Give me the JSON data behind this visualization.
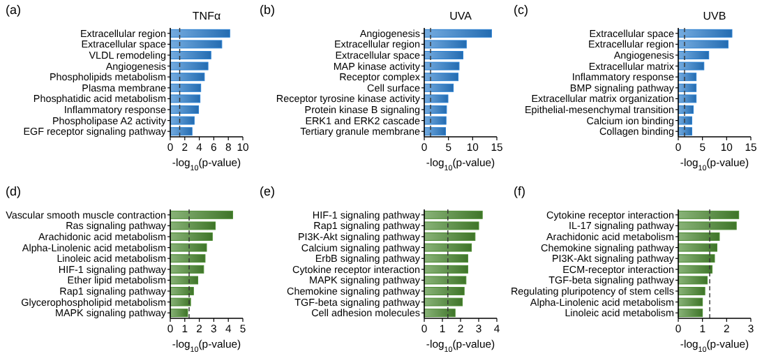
{
  "chart_data": [
    {
      "type": "bar",
      "orientation": "horizontal",
      "title": "TNFα",
      "annotations": [
        "(a)"
      ],
      "xlabel": "-log$_{10}$(p-value)",
      "categories": [
        "Extracellular region",
        "Extracellular space",
        "VLDL remodeling",
        "Angiogenesis",
        "Phospholipids metabolism",
        "Plasma membrane",
        "Phosphatidic acid metabolism",
        "Inflammatory response",
        "Phospholipase A2 activity",
        "EGF receptor signaling pathway"
      ],
      "xlim": [
        0,
        10
      ],
      "xticks": [
        0,
        2,
        4,
        6,
        8,
        10
      ],
      "ref_lines": [
        {
          "axis": "x",
          "value": 1.3,
          "line_style": "dashed",
          "color": "#333333"
        }
      ],
      "series": [
        {
          "color": "#2a7fd0",
          "values": [
            8.2,
            7.1,
            5.6,
            5.2,
            4.7,
            4.2,
            4.1,
            3.9,
            3.3,
            3.0
          ]
        }
      ]
    },
    {
      "type": "bar",
      "orientation": "horizontal",
      "title": "UVA",
      "annotations": [
        "(b)"
      ],
      "xlabel": "-log$_{10}$(p-value)",
      "categories": [
        "Angiogenesis",
        "Extracellular region",
        "Extracellular space",
        "MAP kinase activity",
        "Receptor complex",
        "Cell surface",
        "Receptor tyrosine kinase activity",
        "Protein kinase B signaling",
        "ERK1 and ERK2 cascade",
        "Tertiary granule membrane"
      ],
      "xlim": [
        0,
        15
      ],
      "xticks": [
        0,
        5,
        10,
        15
      ],
      "ref_lines": [
        {
          "axis": "x",
          "value": 1.3,
          "line_style": "dashed",
          "color": "#333333"
        }
      ],
      "series": [
        {
          "color": "#2a7fd0",
          "values": [
            13.9,
            8.7,
            8.0,
            7.2,
            7.0,
            6.0,
            4.9,
            4.6,
            4.5,
            4.4
          ]
        }
      ]
    },
    {
      "type": "bar",
      "orientation": "horizontal",
      "title": "UVB",
      "annotations": [
        "(c)"
      ],
      "xlabel": "-log$_{10}$(p-value)",
      "categories": [
        "Extracellular space",
        "Extracellular region",
        "Angiogenesis",
        "Extracellular matrix",
        "Inflammatory response",
        "BMP signaling pathway",
        "Extracellular matrix organization",
        "Epithelial-mesenchymal transition",
        "Calcium ion binding",
        "Collagen binding"
      ],
      "xlim": [
        0,
        15
      ],
      "xticks": [
        0,
        5,
        10,
        15
      ],
      "ref_lines": [
        {
          "axis": "x",
          "value": 1.3,
          "line_style": "dashed",
          "color": "#333333"
        }
      ],
      "series": [
        {
          "color": "#2a7fd0",
          "values": [
            11.1,
            10.3,
            6.3,
            5.3,
            3.7,
            3.7,
            3.7,
            3.1,
            2.8,
            2.8
          ]
        }
      ]
    },
    {
      "type": "bar",
      "orientation": "horizontal",
      "annotations": [
        "(d)"
      ],
      "xlabel": "-log$_{10}$(p-value)",
      "categories": [
        "Vascular smooth muscle contraction",
        "Ras signaling pathway",
        "Arachidonic acid metabolism",
        "Alpha-Linolenic acid metabolism",
        "Linoleic acid metabolism",
        "HIF-1 signaling pathway",
        "Ether lipid metabolism",
        "Rap1 signaling pathway",
        "Glycerophospholipid metabolism",
        "MAPK signaling pathway"
      ],
      "xlim": [
        0,
        5
      ],
      "xticks": [
        0,
        1,
        2,
        3,
        4,
        5
      ],
      "ref_lines": [
        {
          "axis": "x",
          "value": 1.3,
          "line_style": "dashed",
          "color": "#333333"
        }
      ],
      "series": [
        {
          "color": "#4a8a30",
          "values": [
            4.3,
            3.1,
            2.9,
            2.5,
            2.4,
            2.3,
            1.9,
            1.6,
            1.4,
            1.2
          ]
        }
      ]
    },
    {
      "type": "bar",
      "orientation": "horizontal",
      "annotations": [
        "(e)"
      ],
      "xlabel": "-log$_{10}$(p-value)",
      "categories": [
        "HIF-1 signaling pathway",
        "Rap1 signaling pathway",
        "PI3K-Akt signaling pathway",
        "Calcium signaling pathway",
        "ErbB signaling pathway",
        "Cytokine receptor interaction",
        "MAPK signaling pathway",
        "Chemokine signaling pathway",
        "TGF-beta signaling pathway",
        "Cell adhesion molecules"
      ],
      "xlim": [
        0,
        4
      ],
      "xticks": [
        0,
        1,
        2,
        3,
        4
      ],
      "ref_lines": [
        {
          "axis": "x",
          "value": 1.3,
          "line_style": "dashed",
          "color": "#333333"
        }
      ],
      "series": [
        {
          "color": "#4a8a30",
          "values": [
            3.2,
            3.0,
            2.8,
            2.6,
            2.4,
            2.4,
            2.3,
            2.2,
            2.1,
            1.7
          ]
        }
      ]
    },
    {
      "type": "bar",
      "orientation": "horizontal",
      "annotations": [
        "(f)"
      ],
      "xlabel": "-log$_{10}$(p-value)",
      "categories": [
        "Cytokine receptor interaction",
        "IL-17 signaling pathway",
        "Arachidonic acid metabolism",
        "Chemokine signaling pathway",
        "PI3K-Akt signaling pathway",
        "ECM-receptor interaction",
        "TGF-beta signaling pathway",
        "Regulating pluripotency of stem cells",
        "Alpha-Linolenic acid metabolism",
        "Linoleic acid metabolism"
      ],
      "xlim": [
        0,
        3
      ],
      "xticks": [
        0,
        1,
        2,
        3
      ],
      "ref_lines": [
        {
          "axis": "x",
          "value": 1.3,
          "line_style": "dashed",
          "color": "#333333"
        }
      ],
      "series": [
        {
          "color": "#4a8a30",
          "values": [
            2.5,
            2.4,
            1.7,
            1.6,
            1.5,
            1.4,
            1.2,
            1.1,
            1.0,
            1.0
          ]
        }
      ]
    }
  ]
}
